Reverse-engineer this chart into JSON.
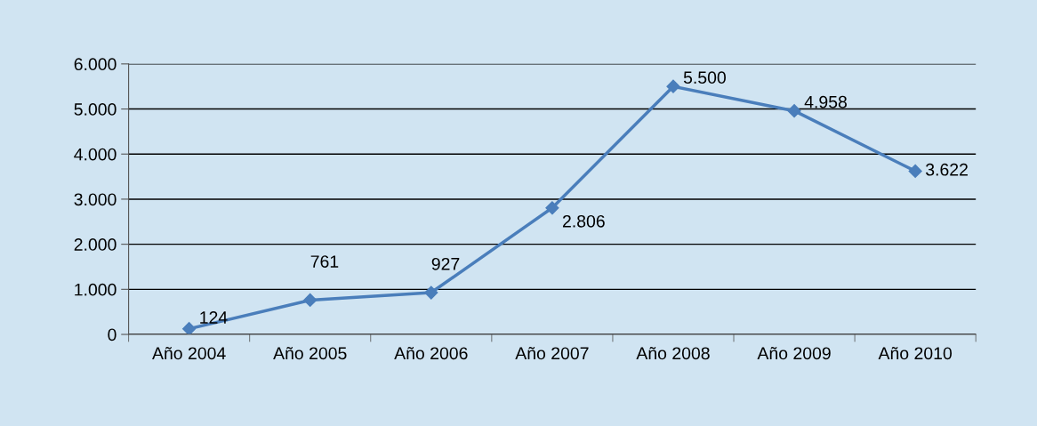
{
  "chart_data": {
    "type": "line",
    "categories": [
      "Año 2004",
      "Año 2005",
      "Año 2006",
      "Año 2007",
      "Año 2008",
      "Año 2009",
      "Año 2010"
    ],
    "series": [
      {
        "color": "#4a7ebb",
        "values": [
          124,
          761,
          927,
          2806,
          5500,
          4958,
          3622
        ],
        "value_labels": [
          "124",
          "761",
          "927",
          "2.806",
          "5.500",
          "4.958",
          "3.622"
        ]
      }
    ],
    "ylim": [
      0,
      6000
    ],
    "yticks": [
      0,
      {
        "value": 1000,
        "label": "1.000"
      },
      {
        "value": 2000,
        "label": "2.000"
      },
      {
        "value": 3000,
        "label": "3.000"
      },
      {
        "value": 4000,
        "label": "4.000"
      },
      {
        "value": 5000,
        "label": "5.000"
      },
      {
        "value": 6000,
        "label": "6.000"
      }
    ],
    "grid": "y",
    "marker": "diamond",
    "line_style": "solid",
    "legend": false
  }
}
